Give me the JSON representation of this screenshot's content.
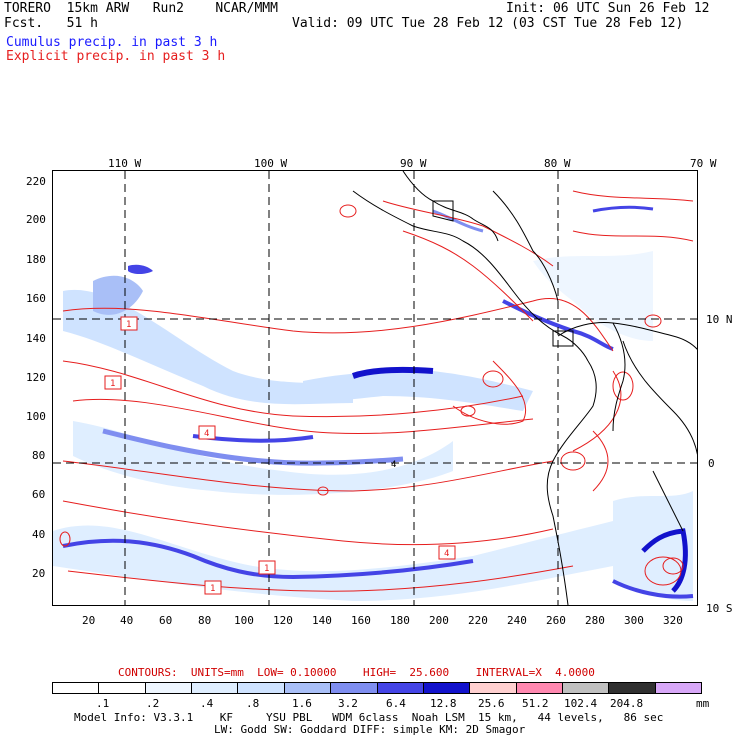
{
  "header": {
    "model": "TORERO  15km ARW   Run2    NCAR/MMM",
    "fcst": "Fcst.   51 h",
    "init": "Init: 06 UTC Sun 26 Feb 12",
    "valid": "Valid: 09 UTC Tue 28 Feb 12 (03 CST Tue 28 Feb 12)",
    "cumulus": "Cumulus precip. in past 3 h",
    "explicit": "Explicit precip. in past 3 h"
  },
  "map": {
    "lon_labels": [
      "110 W",
      "100 W",
      "90 W",
      "80 W",
      "70 W"
    ],
    "lat_labels": [
      "10 N",
      "0",
      "10 S"
    ],
    "y_ticks": [
      "220",
      "200",
      "180",
      "160",
      "140",
      "120",
      "100",
      "80",
      "60",
      "40",
      "20"
    ],
    "x_ticks": [
      "20",
      "40",
      "60",
      "80",
      "100",
      "120",
      "140",
      "160",
      "180",
      "200",
      "220",
      "240",
      "260",
      "280",
      "300",
      "320"
    ],
    "box_labels": [
      "1",
      "1",
      "4",
      "1",
      "4",
      "1"
    ],
    "center_label": "4"
  },
  "colorbar": {
    "contours_text": "CONTOURS:  UNITS=mm  LOW= 0.10000    HIGH=  25.600    INTERVAL=X  4.0000",
    "labels": [
      ".1",
      ".2",
      ".4",
      ".8",
      "1.6",
      "3.2",
      "6.4",
      "12.8",
      "25.6",
      "51.2",
      "102.4",
      "204.8"
    ],
    "units": "mm",
    "colors": [
      "#ffffff",
      "#ffffff",
      "#eef6ff",
      "#dfeeff",
      "#cfe3ff",
      "#a9bff7",
      "#7f8ef0",
      "#4444e6",
      "#1212cc",
      "#ffd0d0",
      "#ff88b0",
      "#c0c0c0",
      "#303030",
      "#d8a8f8"
    ]
  },
  "footer": {
    "line1": "Model Info: V3.3.1    KF     YSU PBL   WDM 6class  Noah LSM  15 km,   44 levels,   86 sec",
    "line2": "LW: Godd SW: Goddard DIFF: simple KM: 2D Smagor"
  }
}
